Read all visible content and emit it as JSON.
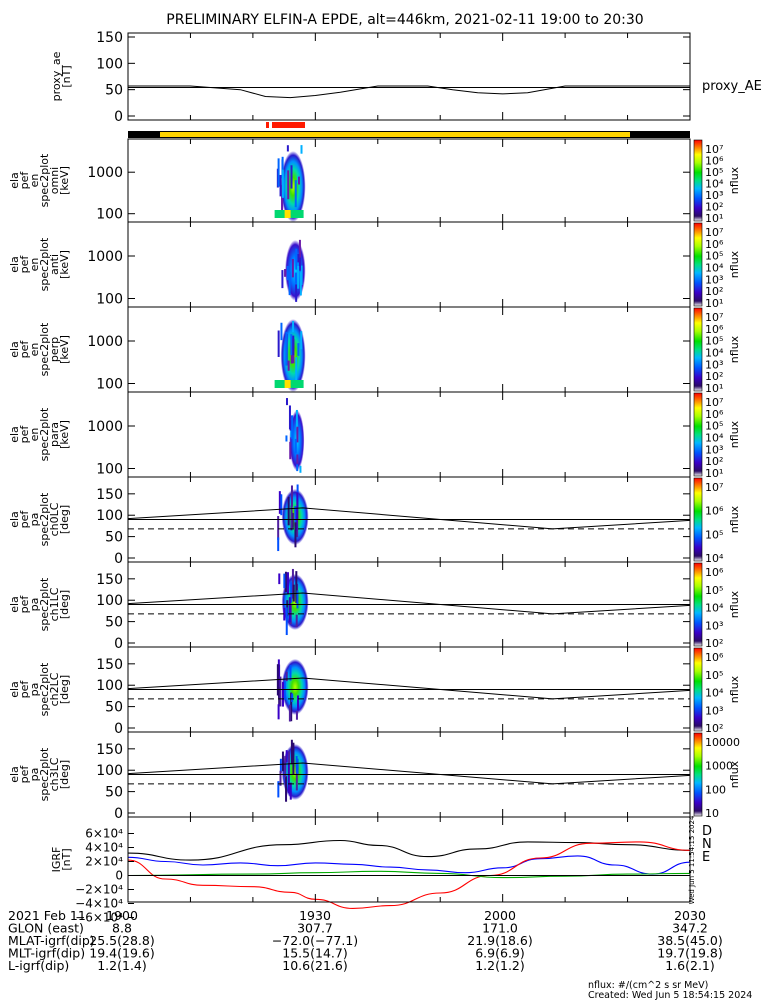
{
  "title": "PRELIMINARY ELFIN-A EPDE, alt=446km, 2021-02-11 19:00 to 20:30",
  "colors": {
    "yellow_bar": "#ffd400",
    "red_bar": "#ff1a00",
    "black_bar": "#000000"
  },
  "chart_data": [
    {
      "type": "line",
      "id": "proxy_ae",
      "ylabel": [
        "proxy_ae",
        "[nT]"
      ],
      "legend": "proxy_AE",
      "ylim": [
        0,
        150
      ],
      "yticks": [
        "150",
        "100",
        "50",
        "0"
      ],
      "xlim": [
        0,
        90
      ],
      "grid_lines_y": [
        54
      ],
      "x": [
        0,
        10,
        18,
        22,
        26,
        30,
        34,
        40,
        48,
        52,
        56,
        60,
        64,
        70,
        74,
        78,
        90
      ],
      "y": [
        57,
        57,
        50,
        37,
        35,
        39,
        45,
        57,
        57,
        50,
        44,
        42,
        44,
        57,
        57,
        57,
        57
      ]
    },
    {
      "type": "heatmap",
      "id": "en-omni",
      "ylabel": [
        "ela",
        "pef",
        "en",
        "spec2plot",
        "omni",
        "[keV]"
      ],
      "yticks": [
        "1000",
        "100"
      ],
      "yscale": "log",
      "colorbar": {
        "label": "nflux",
        "ticks": [
          "10⁷",
          "10⁶",
          "10⁵",
          "10⁴",
          "10³",
          "10²",
          "10¹"
        ]
      },
      "activity_minutes": [
        23.8,
        27.8
      ]
    },
    {
      "type": "heatmap",
      "id": "en-anti",
      "ylabel": [
        "ela",
        "pef",
        "en",
        "spec2plot",
        "anti",
        "[keV]"
      ],
      "yticks": [
        "1000",
        "100"
      ],
      "yscale": "log",
      "colorbar": {
        "label": "nflux",
        "ticks": [
          "10⁷",
          "10⁶",
          "10⁵",
          "10⁴",
          "10³",
          "10²",
          "10¹"
        ]
      },
      "activity_minutes": [
        24.5,
        27.8
      ]
    },
    {
      "type": "heatmap",
      "id": "en-perp",
      "ylabel": [
        "ela",
        "pef",
        "en",
        "spec2plot",
        "perp",
        "[keV]"
      ],
      "yticks": [
        "1000",
        "100"
      ],
      "yscale": "log",
      "colorbar": {
        "label": "nflux",
        "ticks": [
          "10⁷",
          "10⁶",
          "10⁵",
          "10⁴",
          "10³",
          "10²",
          "10¹"
        ]
      },
      "activity_minutes": [
        23.8,
        27.8
      ]
    },
    {
      "type": "heatmap",
      "id": "en-para",
      "ylabel": [
        "ela",
        "pef",
        "en",
        "spec2plot",
        "para",
        "[keV]"
      ],
      "yticks": [
        "1000",
        "100"
      ],
      "yscale": "log",
      "colorbar": {
        "label": "nflux",
        "ticks": [
          "10⁷",
          "10⁶",
          "10⁵",
          "10⁴",
          "10³",
          "10²",
          "10¹"
        ]
      },
      "activity_minutes": [
        25.2,
        27.6
      ]
    },
    {
      "type": "heatmap",
      "id": "pa-ch0",
      "ylabel": [
        "ela",
        "pef",
        "pa",
        "spec2plot",
        "ch0LC",
        "[deg]"
      ],
      "yticks": [
        "150",
        "100",
        "50",
        "0"
      ],
      "ylim": [
        0,
        180
      ],
      "colorbar": {
        "label": "nflux",
        "ticks": [
          "10⁷",
          "10⁶",
          "10⁵",
          "10⁴"
        ]
      },
      "activity_minutes": [
        23.8,
        27.8
      ],
      "solid_line": {
        "x": [
          0,
          28,
          68,
          90
        ],
        "y": [
          92,
          117,
          68,
          88
        ]
      },
      "horizontal_line": 90,
      "dashed_line": 68
    },
    {
      "type": "heatmap",
      "id": "pa-ch1",
      "ylabel": [
        "ela",
        "pef",
        "pa",
        "spec2plot",
        "ch1LC",
        "[deg]"
      ],
      "yticks": [
        "150",
        "100",
        "50",
        "0"
      ],
      "ylim": [
        0,
        180
      ],
      "colorbar": {
        "label": "nflux",
        "ticks": [
          "10⁶",
          "10⁵",
          "10⁴",
          "10³",
          "10²"
        ]
      },
      "activity_minutes": [
        23.8,
        27.8
      ],
      "solid_line": {
        "x": [
          0,
          28,
          68,
          90
        ],
        "y": [
          92,
          117,
          68,
          88
        ]
      },
      "horizontal_line": 90,
      "dashed_line": 68
    },
    {
      "type": "heatmap",
      "id": "pa-ch2",
      "ylabel": [
        "ela",
        "pef",
        "pa",
        "spec2plot",
        "ch2LC",
        "[deg]"
      ],
      "yticks": [
        "150",
        "100",
        "50",
        "0"
      ],
      "ylim": [
        0,
        180
      ],
      "colorbar": {
        "label": "nflux",
        "ticks": [
          "10⁶",
          "10⁵",
          "10⁴",
          "10³",
          "10²"
        ]
      },
      "activity_minutes": [
        23.8,
        27.8
      ],
      "solid_line": {
        "x": [
          0,
          28,
          68,
          90
        ],
        "y": [
          92,
          117,
          68,
          88
        ]
      },
      "horizontal_line": 90,
      "dashed_line": 68
    },
    {
      "type": "heatmap",
      "id": "pa-ch3",
      "ylabel": [
        "ela",
        "pef",
        "pa",
        "spec2plot",
        "ch3LC",
        "[deg]"
      ],
      "yticks": [
        "150",
        "100",
        "50",
        "0"
      ],
      "ylim": [
        0,
        180
      ],
      "colorbar": {
        "label": "nflux",
        "ticks": [
          "10000",
          "1000",
          "100",
          "10"
        ]
      },
      "activity_minutes": [
        23.8,
        27.8
      ],
      "solid_line": {
        "x": [
          0,
          28,
          68,
          90
        ],
        "y": [
          92,
          117,
          68,
          88
        ]
      },
      "horizontal_line": 90,
      "dashed_line": 68
    },
    {
      "type": "line",
      "id": "igrf",
      "ylabel": [
        "IGRF",
        "[nT]"
      ],
      "yticks": [
        "6×10⁴",
        "4×10⁴",
        "2×10⁴",
        "0",
        "−2×10⁴",
        "−4×10⁴",
        "−6×10⁴"
      ],
      "ylim": [
        -60000,
        60000
      ],
      "legend": [
        "D",
        "N",
        "E"
      ],
      "series": [
        {
          "name": "D",
          "color": "#000000",
          "x": [
            0,
            10,
            25,
            34,
            40,
            48,
            56,
            64,
            72,
            80,
            90
          ],
          "y": [
            32000,
            22000,
            44000,
            50000,
            43000,
            27000,
            38000,
            48000,
            47000,
            44000,
            36000
          ]
        },
        {
          "name": "N",
          "color": "#0000ff",
          "x": [
            0,
            6,
            12,
            18,
            24,
            30,
            36,
            42,
            48,
            54,
            60,
            66,
            72,
            78,
            84,
            90
          ],
          "y": [
            26000,
            20000,
            15000,
            18000,
            14000,
            18000,
            16000,
            12000,
            8000,
            4000,
            11000,
            24000,
            28000,
            15000,
            2000,
            19000
          ]
        },
        {
          "name": "E",
          "color": "#ff0000",
          "x": [
            0,
            6,
            12,
            20,
            26,
            30,
            36,
            42,
            50,
            58,
            66,
            74,
            82,
            90
          ],
          "y": [
            22000,
            -5000,
            -14000,
            -16000,
            -24000,
            -34000,
            -47000,
            -43000,
            -25000,
            0,
            25000,
            46000,
            48000,
            36000
          ]
        },
        {
          "name": "",
          "color": "#00aa00",
          "x": [
            0,
            20,
            30,
            40,
            50,
            60,
            70,
            80,
            90
          ],
          "y": [
            0,
            2000,
            4000,
            6000,
            3000,
            -3000,
            -1000,
            2000,
            3000
          ]
        }
      ]
    }
  ],
  "x_axis": {
    "ticks": [
      "1900",
      "1930",
      "2000",
      "2030"
    ],
    "rows": [
      {
        "label": "2021 Feb 11",
        "values": [
          "1900",
          "1930",
          "2000",
          "2030"
        ]
      },
      {
        "label": "GLON (east)",
        "values": [
          "8.8",
          "307.7",
          "171.0",
          "347.2"
        ]
      },
      {
        "label": "MLAT-igrf(dip)",
        "values": [
          "25.5(28.8)",
          "−72.0(−77.1)",
          "21.9(18.6)",
          "38.5(45.0)"
        ]
      },
      {
        "label": "MLT-igrf(dip)",
        "values": [
          "19.4(19.6)",
          "15.5(14.7)",
          "6.9(6.9)",
          "19.7(19.8)"
        ]
      },
      {
        "label": "L-igrf(dip)",
        "values": [
          "1.2(1.4)",
          "10.6(21.6)",
          "1.2(1.2)",
          "1.6(2.1)"
        ]
      }
    ]
  },
  "footer": {
    "units": "nflux: #/(cm^2 s sr MeV)",
    "created": "Created: Wed Jun  5 18:54:15 2024",
    "side_stamp": "Wed Jun  5 11:54:15 2024"
  }
}
